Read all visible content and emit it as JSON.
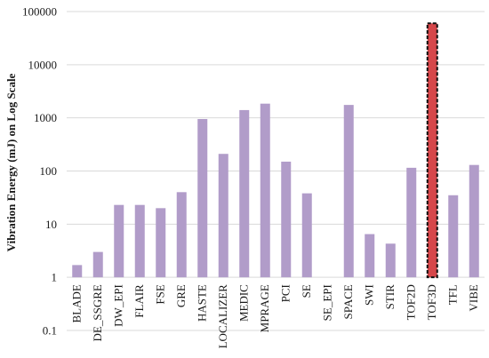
{
  "chart_data": {
    "type": "bar",
    "title": "",
    "xlabel": "",
    "ylabel": "Vibration Energy (mJ) on Log Scale",
    "yscale": "log",
    "ylim": [
      0.1,
      100000
    ],
    "yticks": [
      {
        "value": 0.1,
        "label": "0.1"
      },
      {
        "value": 1,
        "label": "1"
      },
      {
        "value": 10,
        "label": "10"
      },
      {
        "value": 100,
        "label": "100"
      },
      {
        "value": 1000,
        "label": "1000"
      },
      {
        "value": 10000,
        "label": "10000"
      },
      {
        "value": 100000,
        "label": "100000"
      }
    ],
    "grid": true,
    "legend": "none",
    "categories": [
      "BLADE",
      "DE_SSGRE",
      "DW_EPI",
      "FLAIR",
      "FSE",
      "GRE",
      "HASTE",
      "LOCALIZER",
      "MEDIC",
      "MPRAGE",
      "PCI",
      "SE",
      "SE_EPI",
      "SPACE",
      "SWI",
      "STIR",
      "TOF2D",
      "TOF3D",
      "TFL",
      "VIBE"
    ],
    "values": [
      1.7,
      3.0,
      23,
      23,
      20,
      40,
      950,
      210,
      1400,
      1850,
      150,
      38,
      1.0,
      1750,
      6.5,
      4.3,
      115,
      60000,
      35,
      130
    ],
    "highlight": {
      "category": "TOF3D",
      "style": "dashed-outline"
    },
    "colors": {
      "bar": "#b19cc9",
      "highlight_bar": "#d6474a",
      "highlight_outline": "#111111",
      "grid": "#d9d9d9",
      "text": "#1a1a1a"
    }
  }
}
